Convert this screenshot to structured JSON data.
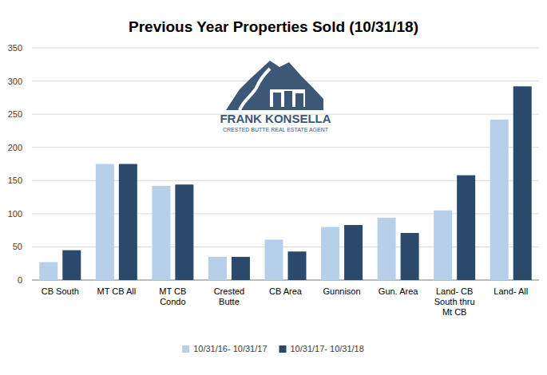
{
  "chart_data": {
    "type": "bar",
    "title": "Previous Year Properties Sold (10/31/18)",
    "annotations": [
      "FRANK KONSELLA",
      "CRESTED BUTTE REAL ESTATE AGENT"
    ],
    "categories": [
      "CB South",
      "MT CB All",
      "MT CB Condo",
      "Crested Butte",
      "CB Area",
      "Gunnison",
      "Gun. Area",
      "Land- CB South thru Mt CB",
      "Land- All"
    ],
    "series": [
      {
        "name": "10/31/16- 10/31/17",
        "color": "#b7d0ea",
        "values": [
          27,
          175,
          142,
          35,
          61,
          80,
          94,
          105,
          242
        ]
      },
      {
        "name": "10/31/17- 10/31/18",
        "color": "#2b4a6b",
        "values": [
          45,
          175,
          144,
          35,
          43,
          83,
          71,
          158,
          292
        ]
      }
    ],
    "ylim": [
      0,
      350
    ],
    "yticks": [
      0,
      50,
      100,
      150,
      200,
      250,
      300,
      350
    ],
    "grid": true,
    "legend": "bottom"
  }
}
